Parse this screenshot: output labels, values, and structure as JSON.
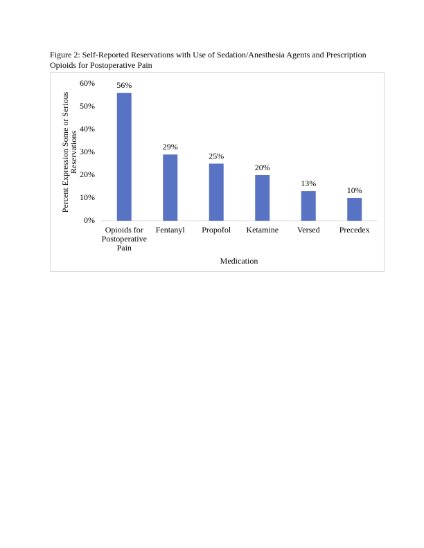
{
  "chart_data": {
    "type": "bar",
    "title": "Figure 2: Self-Reported Reservations with Use of Sedation/Anesthesia Agents and Prescription Opioids for Postoperative Pain",
    "x_label": "Medication",
    "y_label": "Percent Expression Some or Serious Reservations",
    "categories": [
      "Opioids for Postoperative Pain",
      "Fentanyl",
      "Propofol",
      "Ketamine",
      "Versed",
      "Precedex"
    ],
    "values": [
      56,
      29,
      25,
      20,
      13,
      10
    ],
    "value_labels": [
      "56%",
      "29%",
      "25%",
      "20%",
      "13%",
      "10%"
    ],
    "color": "#5872c4",
    "ylim": [
      0,
      60
    ],
    "yticks": [
      {
        "value": 0,
        "label": "0%"
      },
      {
        "value": 10,
        "label": "10%"
      },
      {
        "value": 20,
        "label": "20%"
      },
      {
        "value": 30,
        "label": "30%"
      },
      {
        "value": 40,
        "label": "40%"
      },
      {
        "value": 50,
        "label": "50%"
      },
      {
        "value": 60,
        "label": "60%"
      }
    ],
    "grid": false
  }
}
